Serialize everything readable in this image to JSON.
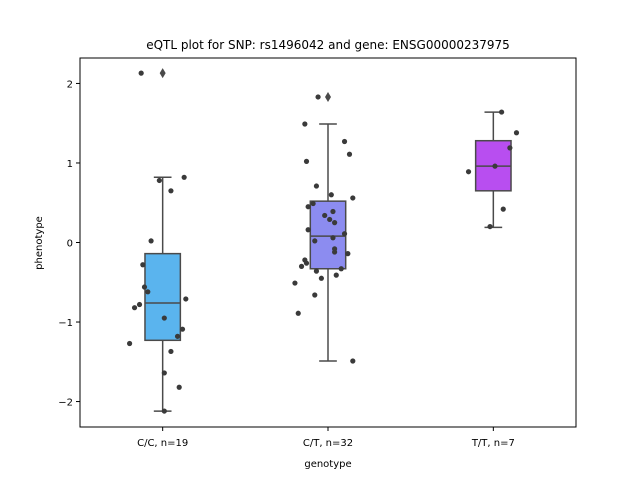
{
  "chart_data": {
    "type": "box",
    "title": "eQTL plot for SNP: rs1496042 and gene: ENSG00000237975",
    "xlabel": "genotype",
    "ylabel": "phenotype",
    "ylim": [
      -2.32,
      2.32
    ],
    "yticks": [
      -2,
      -1,
      0,
      1,
      2
    ],
    "ytick_labels": [
      "−2",
      "−1",
      "0",
      "1",
      "2"
    ],
    "grid": false,
    "categories": [
      "C/C, n=19",
      "C/T, n=32",
      "T/T, n=7"
    ],
    "box_colors": [
      "#5ab4ee",
      "#8c8cf0",
      "#b84ef0"
    ],
    "box_edge_color": "#4a4a4a",
    "point_color": "#3a3a3a",
    "boxes": [
      {
        "q1": -1.23,
        "median": -0.76,
        "q3": -0.14,
        "whisker_low": -2.12,
        "whisker_high": 0.82,
        "outliers": [
          2.13
        ]
      },
      {
        "q1": -0.33,
        "median": 0.08,
        "q3": 0.52,
        "whisker_low": -1.49,
        "whisker_high": 1.49,
        "outliers": [
          1.83
        ]
      },
      {
        "q1": 0.65,
        "median": 0.96,
        "q3": 1.28,
        "whisker_low": 0.19,
        "whisker_high": 1.64,
        "outliers": []
      }
    ],
    "points": [
      [
        [
          -0.13,
          2.13
        ],
        [
          -0.02,
          0.78
        ],
        [
          0.05,
          0.65
        ],
        [
          0.13,
          0.82
        ],
        [
          -0.07,
          0.02
        ],
        [
          -0.12,
          -0.28
        ],
        [
          -0.11,
          -0.56
        ],
        [
          -0.09,
          -0.62
        ],
        [
          -0.14,
          -0.78
        ],
        [
          -0.17,
          -0.82
        ],
        [
          0.14,
          -0.71
        ],
        [
          0.01,
          -0.95
        ],
        [
          0.12,
          -1.09
        ],
        [
          0.09,
          -1.18
        ],
        [
          -0.2,
          -1.27
        ],
        [
          0.05,
          -1.37
        ],
        [
          0.01,
          -1.64
        ],
        [
          0.1,
          -1.82
        ],
        [
          0.01,
          -2.12
        ]
      ],
      [
        [
          -0.06,
          1.83
        ],
        [
          -0.14,
          1.49
        ],
        [
          0.1,
          1.27
        ],
        [
          0.13,
          1.11
        ],
        [
          -0.13,
          1.02
        ],
        [
          -0.07,
          0.71
        ],
        [
          0.02,
          0.6
        ],
        [
          0.15,
          0.56
        ],
        [
          -0.09,
          0.49
        ],
        [
          -0.12,
          0.45
        ],
        [
          0.03,
          0.39
        ],
        [
          -0.02,
          0.34
        ],
        [
          0.01,
          0.29
        ],
        [
          0.04,
          0.25
        ],
        [
          -0.12,
          0.16
        ],
        [
          0.1,
          0.11
        ],
        [
          0.03,
          0.06
        ],
        [
          -0.08,
          0.02
        ],
        [
          0.04,
          -0.08
        ],
        [
          0.04,
          -0.12
        ],
        [
          0.12,
          -0.14
        ],
        [
          -0.14,
          -0.22
        ],
        [
          -0.13,
          -0.26
        ],
        [
          -0.16,
          -0.3
        ],
        [
          0.08,
          -0.33
        ],
        [
          -0.07,
          -0.36
        ],
        [
          0.05,
          -0.41
        ],
        [
          -0.04,
          -0.45
        ],
        [
          -0.2,
          -0.51
        ],
        [
          -0.08,
          -0.66
        ],
        [
          -0.18,
          -0.89
        ],
        [
          0.15,
          -1.49
        ]
      ],
      [
        [
          0.05,
          1.64
        ],
        [
          0.14,
          1.38
        ],
        [
          0.1,
          1.19
        ],
        [
          0.01,
          0.96
        ],
        [
          -0.15,
          0.89
        ],
        [
          0.06,
          0.42
        ],
        [
          -0.02,
          0.2
        ]
      ]
    ]
  }
}
